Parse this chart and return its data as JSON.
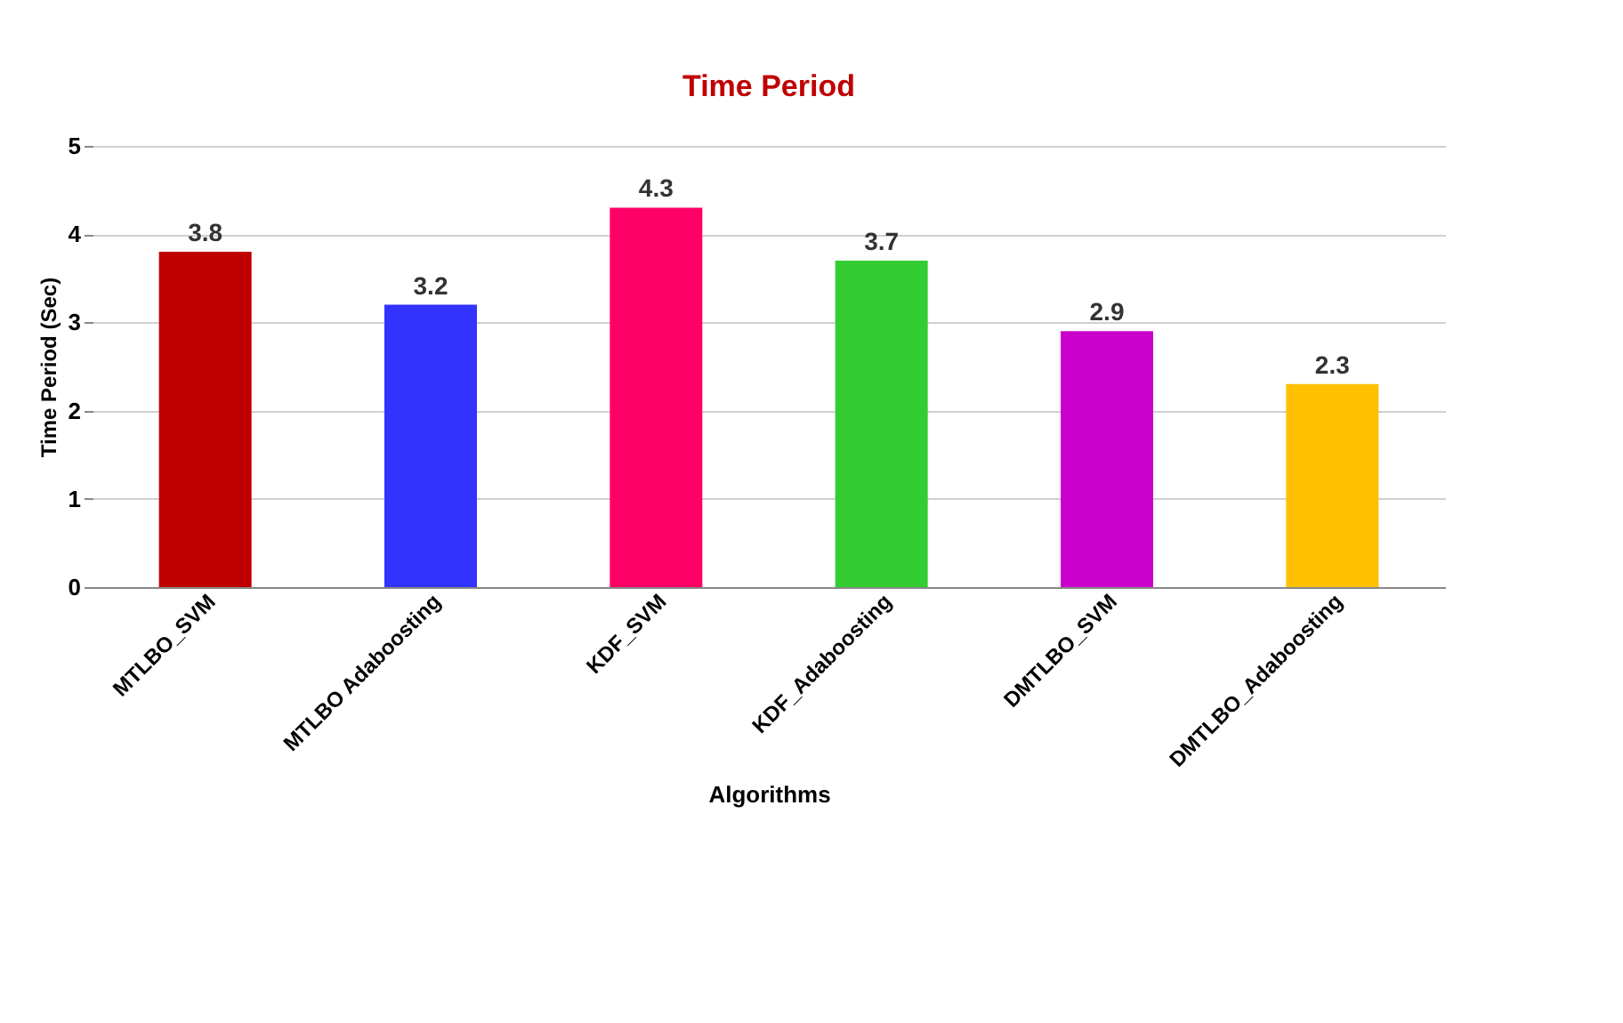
{
  "chart_data": {
    "type": "bar",
    "title": "Time Period",
    "xlabel": "Algorithms",
    "ylabel": "Time Period (Sec)",
    "categories": [
      "MTLBO_SVM",
      "MTLBO Adaboosting",
      "KDF_SVM",
      "KDF_Adaboosting",
      "DMTLBO_SVM",
      "DMTLBO_Adaboosting"
    ],
    "values": [
      3.8,
      3.2,
      4.3,
      3.7,
      2.9,
      2.3
    ],
    "colors": [
      "#c00000",
      "#3333ff",
      "#ff0066",
      "#33cc33",
      "#cc00cc",
      "#ffc000"
    ],
    "ylim": [
      0,
      5
    ],
    "yticks": [
      0,
      1,
      2,
      3,
      4,
      5
    ],
    "grid": "y",
    "data_labels": true
  }
}
